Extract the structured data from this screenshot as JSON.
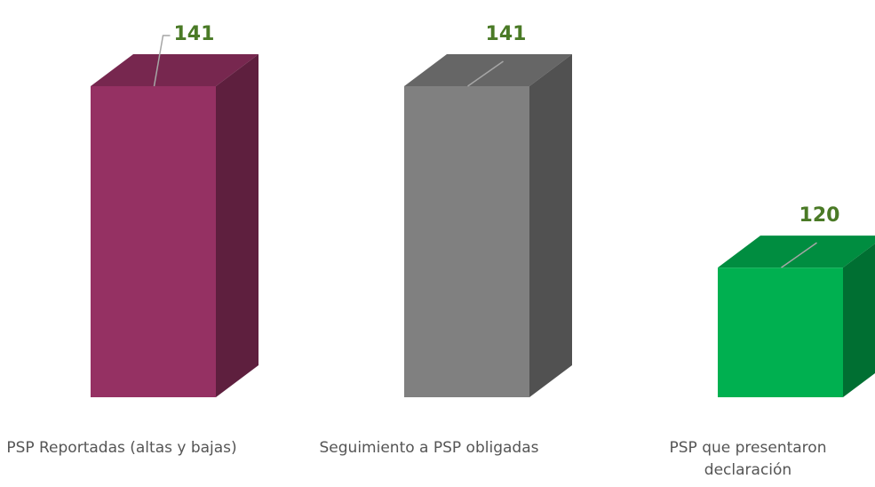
{
  "chart_data": {
    "type": "bar3d",
    "categories": [
      "PSP Reportadas (altas y bajas)",
      "Seguimiento a PSP obligadas",
      "PSP que presentaron declaración"
    ],
    "values": [
      141,
      141,
      120
    ],
    "colors": [
      "#953163",
      "#808080",
      "#00b050"
    ],
    "ylim": [
      105,
      141
    ]
  }
}
